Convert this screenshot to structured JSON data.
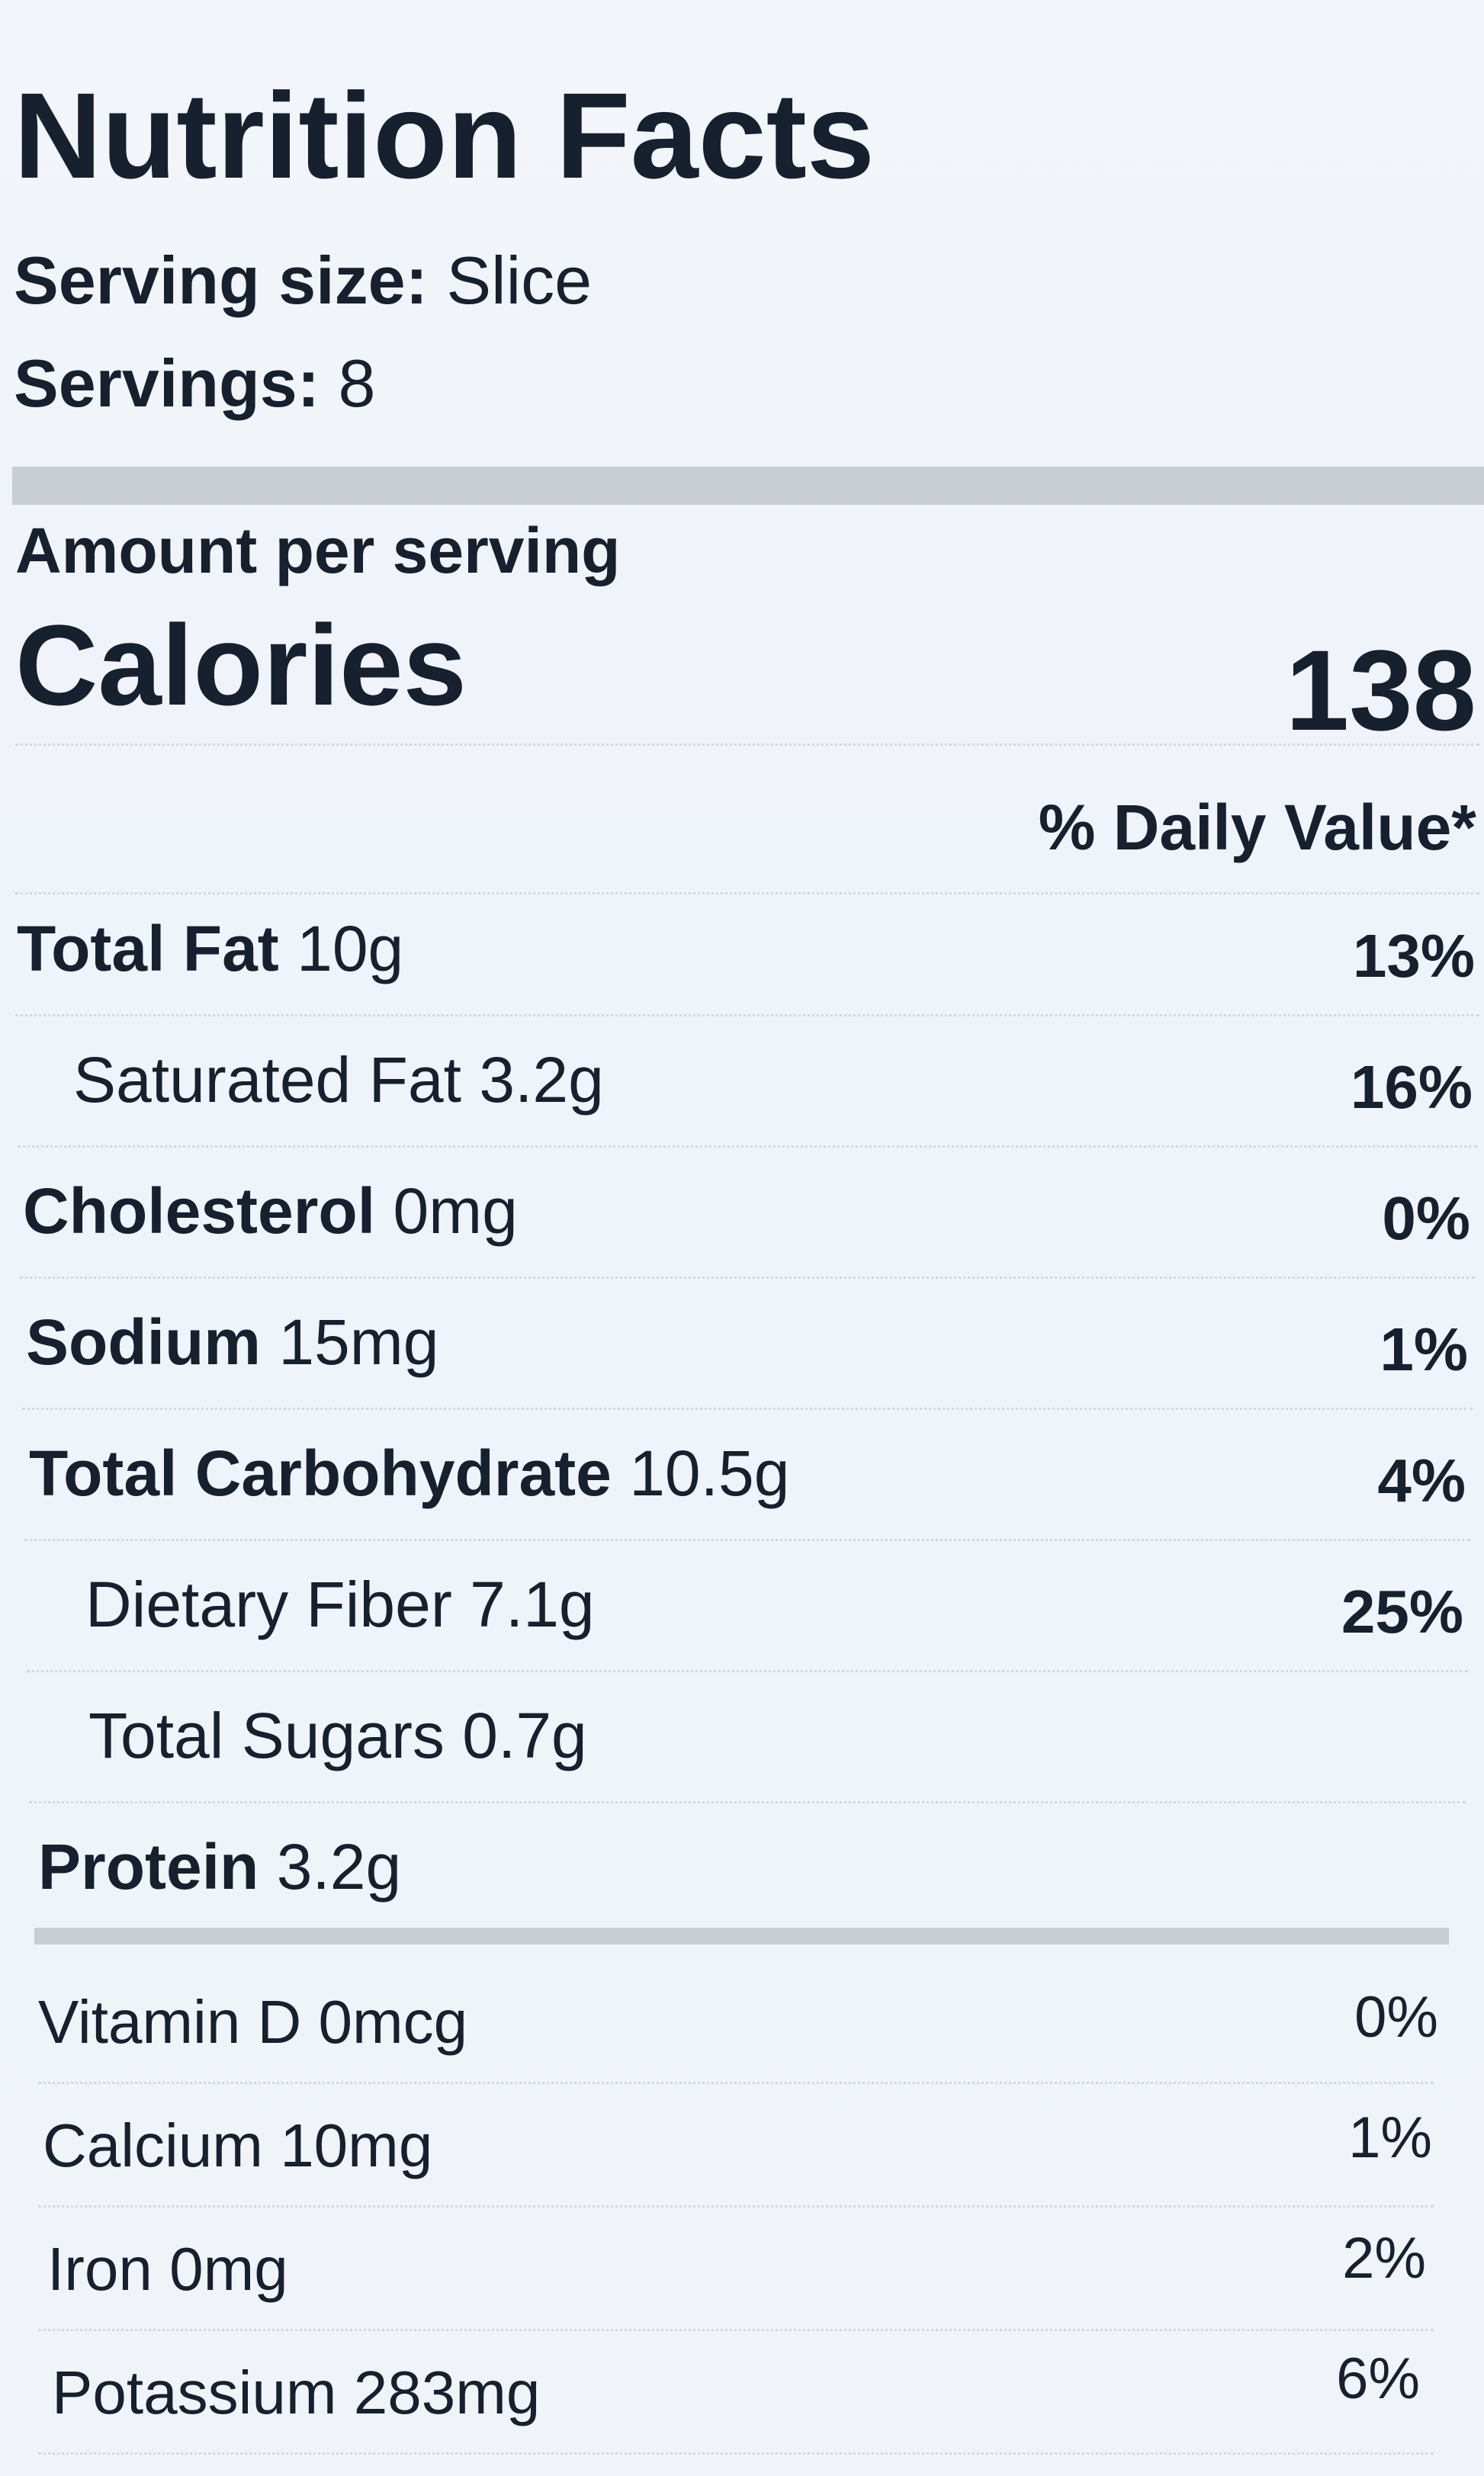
{
  "title": "Nutrition Facts",
  "serving_size": {
    "label": "Serving size:",
    "value": "Slice"
  },
  "servings": {
    "label": "Servings:",
    "value": "8"
  },
  "amount_per_serving": "Amount per serving",
  "calories": {
    "label": "Calories",
    "value": "138"
  },
  "daily_value_header": "% Daily Value*",
  "nutrients": [
    {
      "name": "Total Fat",
      "amount": "10g",
      "dv": "13%",
      "sub": [
        {
          "name": "Saturated Fat",
          "amount": "3.2g",
          "dv": "16%"
        }
      ]
    },
    {
      "name": "Cholesterol",
      "amount": "0mg",
      "dv": "0%"
    },
    {
      "name": "Sodium",
      "amount": "15mg",
      "dv": "1%"
    },
    {
      "name": "Total Carbohydrate",
      "amount": "10.5g",
      "dv": "4%",
      "sub": [
        {
          "name": "Dietary Fiber",
          "amount": "7.1g",
          "dv": "25%"
        },
        {
          "name": "Total Sugars",
          "amount": "0.7g"
        }
      ]
    },
    {
      "name": "Protein",
      "amount": "3.2g"
    }
  ],
  "vitamins": [
    {
      "name": "Vitamin D",
      "amount": "0mcg",
      "dv": "0%"
    },
    {
      "name": "Calcium",
      "amount": "10mg",
      "dv": "1%"
    },
    {
      "name": "Iron",
      "amount": "0mg",
      "dv": "2%"
    },
    {
      "name": "Potassium",
      "amount": "283mg",
      "dv": "6%"
    }
  ]
}
